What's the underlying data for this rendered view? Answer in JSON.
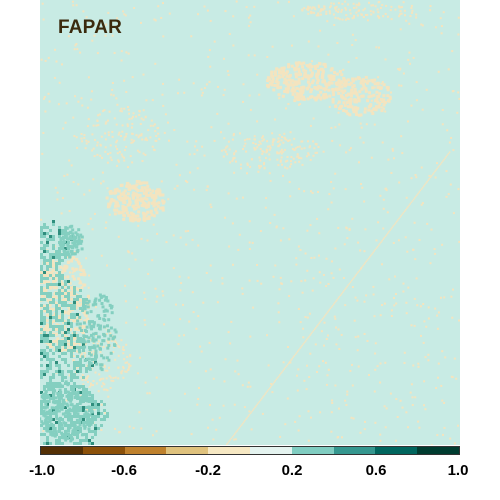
{
  "map": {
    "title": "FAPAR",
    "colors": {
      "background": "#c8ebe4",
      "dry_patch": "#f4e4bf",
      "wet_patch": "#84cfc0",
      "dark_patch": "#2f8e7d"
    }
  },
  "colorbar": {
    "segments": [
      "#543005",
      "#8c510a",
      "#bf812d",
      "#dfc27d",
      "#f6e8c3",
      "#e4f3ef",
      "#80cdc1",
      "#35978f",
      "#01665e",
      "#003c30"
    ],
    "ticks": [
      "-1.0",
      "-0.6",
      "-0.2",
      "0.2",
      "0.6",
      "1.0"
    ],
    "range": [
      -1.0,
      1.0
    ]
  }
}
